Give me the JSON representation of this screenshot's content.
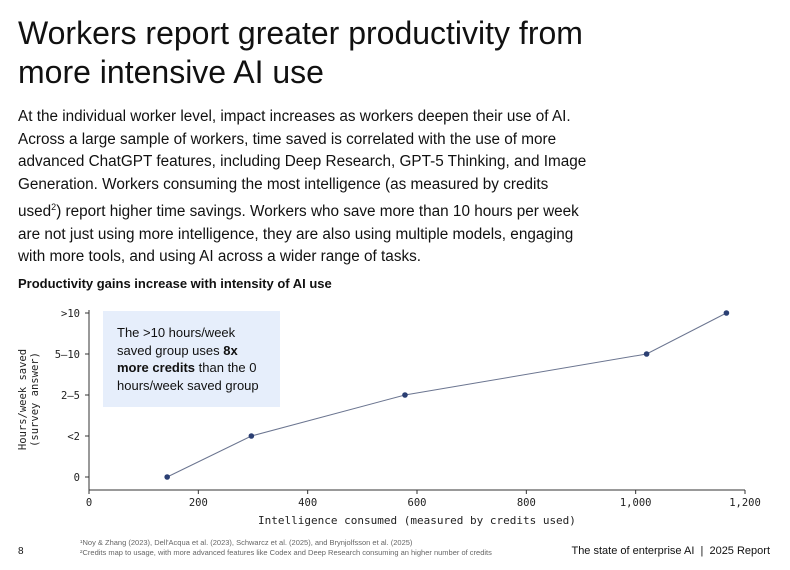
{
  "title": "Workers report greater productivity from more intensive AI use",
  "body": {
    "part1": "At the individual worker level, impact increases as workers deepen their use of AI. Across a large sample of workers, time saved is correlated with the use of more advanced ChatGPT features, including Deep Research, GPT-5 Thinking, and Image Generation. Workers consuming the most intelligence (as measured by credits used",
    "sup": "2",
    "part2": ") report higher time savings. Workers who save more than 10 hours per week are not just using more intelligence, they are also using multiple models, engaging with more tools, and using AI across a wider range of tasks."
  },
  "callout": {
    "t1": "The >10 hours/week saved group uses ",
    "b1": "8x more credits",
    "t2": " than the 0 hours/week saved group"
  },
  "chart_data": {
    "type": "line",
    "title": "Productivity gains increase with intensity of AI use",
    "xlabel": "Intelligence consumed (measured by credits used)",
    "ylabel": [
      "Hours/week saved",
      "(survey answer)"
    ],
    "xlim": [
      0,
      1200
    ],
    "xticks": [
      0,
      200,
      400,
      600,
      800,
      1000,
      1200
    ],
    "xtick_labels": [
      "0",
      "200",
      "400",
      "600",
      "800",
      "1,000",
      "1,200"
    ],
    "categories": [
      "0",
      "<2",
      "2–5",
      "5–10",
      ">10"
    ],
    "points": [
      {
        "x": 143,
        "y": "0"
      },
      {
        "x": 297,
        "y": "<2"
      },
      {
        "x": 578,
        "y": "2–5"
      },
      {
        "x": 1020,
        "y": "5–10"
      },
      {
        "x": 1166,
        "y": ">10"
      }
    ],
    "color": "#2b3f73",
    "line_color": "#6b7590",
    "grid": false
  },
  "footer": {
    "page": "8",
    "fn1": "¹Noy & Zhang (2023), Dell'Acqua et al. (2023), Schwarcz et al. (2025), and Brynjolfsson et al. (2025)",
    "fn2": "²Credits map to usage, with more advanced features like Codex and Deep Research consuming an higher number of credits",
    "report": "The state of enterprise AI  |  2025 Report"
  }
}
